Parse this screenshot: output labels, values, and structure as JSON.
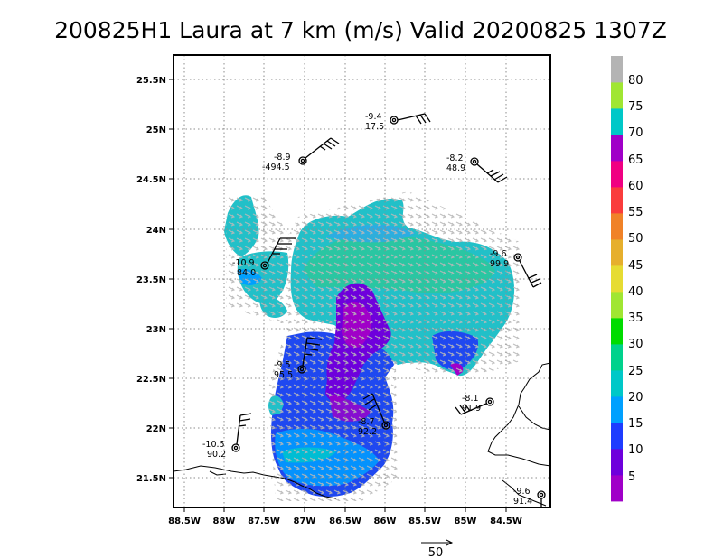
{
  "title": "200825H1 Laura at 7 km (m/s) Valid 20200825 1307Z",
  "map": {
    "lon_labels": [
      "88.5W",
      "88W",
      "87.5W",
      "87W",
      "86.5W",
      "86W",
      "85.5W",
      "85W",
      "84.5W"
    ],
    "lat_labels": [
      "25.5N",
      "25N",
      "24.5N",
      "24N",
      "23.5N",
      "23N",
      "22.5N",
      "22N",
      "21.5N"
    ]
  },
  "observations": [
    {
      "top": "-9.4",
      "bottom": "17.5"
    },
    {
      "top": "-8.9",
      "bottom": "-494.5"
    },
    {
      "top": "-8.2",
      "bottom": "48.9"
    },
    {
      "top": "-9.6",
      "bottom": "99.9"
    },
    {
      "top": "-10.9",
      "bottom": "84.0"
    },
    {
      "top": "-9.5",
      "bottom": "95.5"
    },
    {
      "top": "-8.1",
      "bottom": "91.9"
    },
    {
      "top": "-8.7",
      "bottom": "92.2"
    },
    {
      "top": "-10.5",
      "bottom": "90.2"
    },
    {
      "top": "-9.6",
      "bottom": "91.4"
    }
  ],
  "colorbar": {
    "labels": [
      "5",
      "10",
      "15",
      "20",
      "25",
      "30",
      "35",
      "40",
      "45",
      "50",
      "55",
      "60",
      "65",
      "70",
      "75",
      "80"
    ],
    "colors": [
      "#a000c8",
      "#6e00dc",
      "#1e3cff",
      "#00a0ff",
      "#00c8c8",
      "#00d28c",
      "#00dc00",
      "#a0e632",
      "#e6dc32",
      "#e6af2d",
      "#f08228",
      "#fa3c3c",
      "#f00082",
      "#a000c8",
      "#00c8c8",
      "#a0e632",
      "#b4b4b4"
    ]
  },
  "reference_vector_label": "50"
}
